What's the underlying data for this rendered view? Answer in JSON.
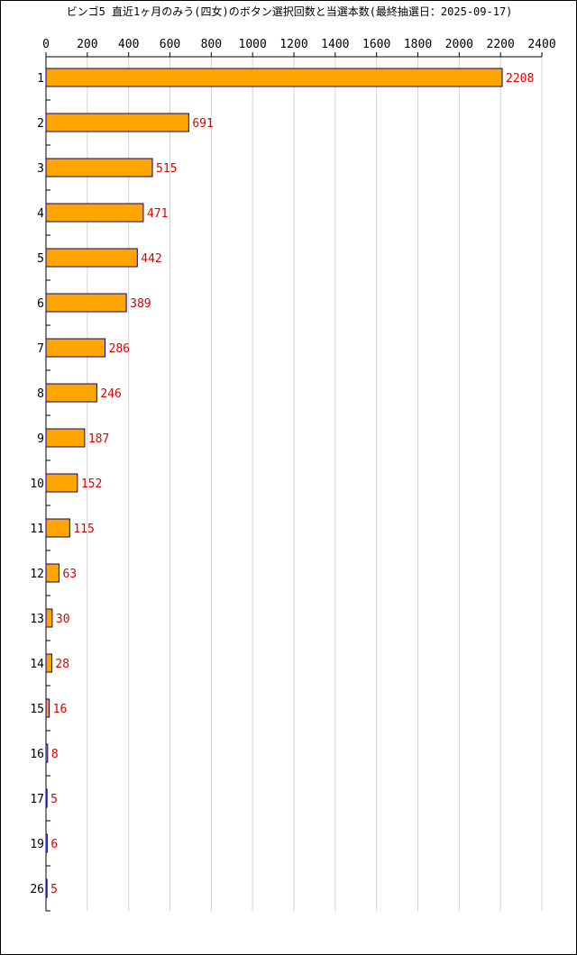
{
  "chart_data": {
    "type": "bar",
    "orientation": "horizontal",
    "title": "ビンゴ5 直近1ヶ月のみう(四女)のボタン選択回数と当選本数(最終抽選日：2025-09-17)",
    "xlabel": "",
    "ylabel": "",
    "xlim": [
      0,
      2400
    ],
    "x_ticks": [
      0,
      200,
      400,
      600,
      800,
      1000,
      1200,
      1400,
      1600,
      1800,
      2000,
      2200,
      2400
    ],
    "x_tick_labels": [
      "0",
      "200",
      "400",
      "600",
      "800",
      "1000",
      "1200",
      "1400",
      "1600",
      "1800",
      "2000",
      "2200",
      "2400"
    ],
    "axis_position": "top",
    "grid": true,
    "categories": [
      "1",
      "2",
      "3",
      "4",
      "5",
      "6",
      "7",
      "8",
      "9",
      "10",
      "11",
      "12",
      "13",
      "14",
      "15",
      "16",
      "17",
      "19",
      "26"
    ],
    "values": [
      2208,
      691,
      515,
      471,
      442,
      389,
      286,
      246,
      187,
      152,
      115,
      63,
      30,
      28,
      16,
      8,
      5,
      6,
      5
    ],
    "colors": {
      "bar_fill": "#ffa500",
      "bar_stroke": "#00008b",
      "data_label": "#e00000",
      "grid": "#d3d3d3",
      "axis": "#000000"
    }
  }
}
